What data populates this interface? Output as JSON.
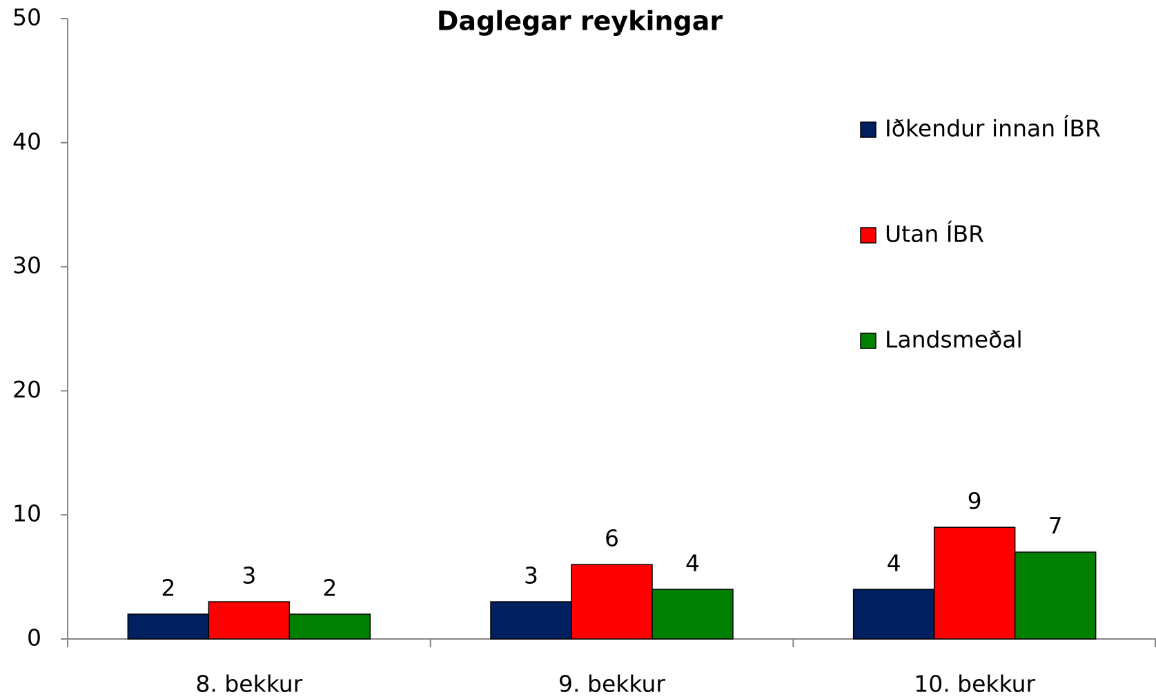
{
  "chart_data": {
    "type": "bar",
    "title": "Daglegar reykingar",
    "categories": [
      "8. bekkur",
      "9. bekkur",
      "10. bekkur"
    ],
    "series": [
      {
        "name": "Iðkendur innan ÍBR",
        "color": "#002060",
        "values": [
          2,
          3,
          4
        ]
      },
      {
        "name": "Utan ÍBR",
        "color": "#ff0000",
        "values": [
          3,
          6,
          9
        ]
      },
      {
        "name": "Landsmeðal",
        "color": "#008000",
        "values": [
          2,
          4,
          7
        ]
      }
    ],
    "ylim": [
      0,
      50
    ],
    "yticks": [
      0,
      10,
      20,
      30,
      40,
      50
    ],
    "grid": false,
    "legend": "right"
  }
}
